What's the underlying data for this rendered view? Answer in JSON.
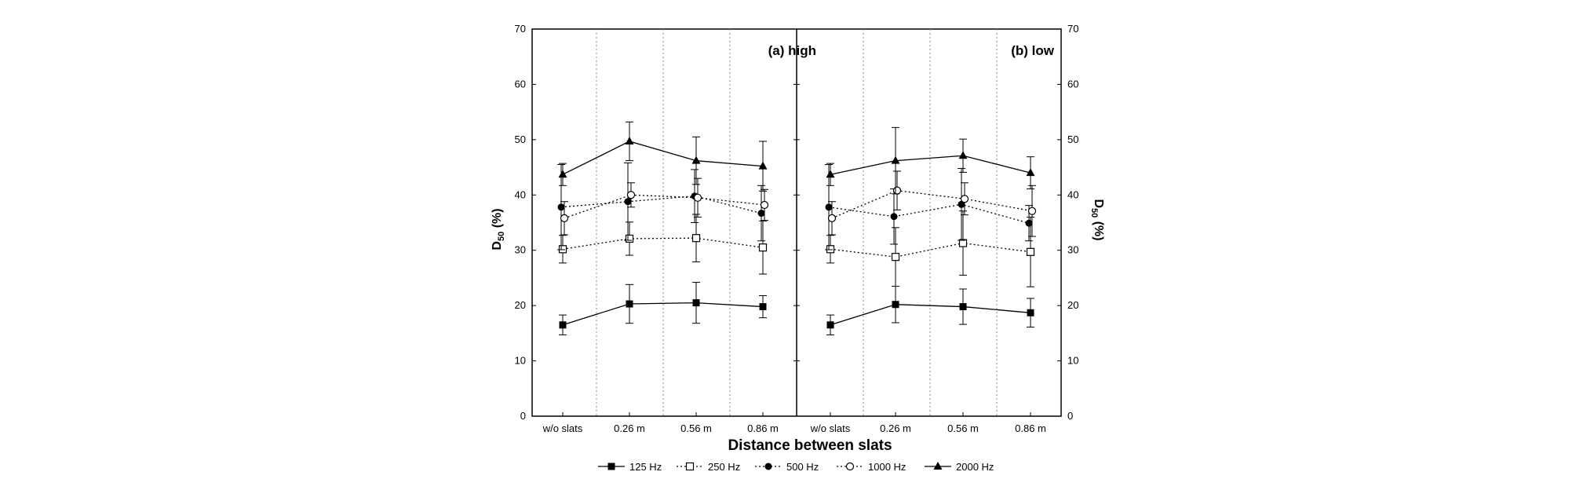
{
  "chart_data": {
    "type": "line",
    "xlabel": "Distance between slats",
    "ylabel": "D50 (%)",
    "ylabel_main": "D",
    "ylabel_sub": "50",
    "ylabel_unit": " (%)",
    "ylim": [
      0,
      70
    ],
    "yticks": [
      0,
      10,
      20,
      30,
      40,
      50,
      60,
      70
    ],
    "categories": [
      "w/o slats",
      "0.26 m",
      "0.56 m",
      "0.86 m"
    ],
    "grid": "vertical dotted separators between categories",
    "legend_position": "bottom",
    "panels": [
      {
        "title": "(a) high",
        "series": [
          {
            "name": "125 Hz",
            "values": [
              16.5,
              20.3,
              20.5,
              19.8
            ],
            "err": [
              1.8,
              3.5,
              3.7,
              2.0
            ]
          },
          {
            "name": "250 Hz",
            "values": [
              30.2,
              32.1,
              32.2,
              30.5
            ],
            "err": [
              2.5,
              3.0,
              4.3,
              4.8
            ]
          },
          {
            "name": "500 Hz",
            "values": [
              37.8,
              38.8,
              39.8,
              36.7
            ],
            "err": [
              7.7,
              7.0,
              4.8,
              5.0
            ]
          },
          {
            "name": "1000 Hz",
            "values": [
              35.8,
              40.0,
              39.5,
              38.2
            ],
            "err": [
              3.0,
              2.2,
              3.5,
              2.8
            ]
          },
          {
            "name": "2000 Hz",
            "values": [
              43.7,
              49.7,
              46.2,
              45.2
            ],
            "err": [
              2.0,
              3.5,
              4.3,
              4.5
            ]
          }
        ]
      },
      {
        "title": "(b) low",
        "series": [
          {
            "name": "125 Hz",
            "values": [
              16.5,
              20.2,
              19.8,
              18.7
            ],
            "err": [
              1.8,
              3.3,
              3.2,
              2.6
            ]
          },
          {
            "name": "250 Hz",
            "values": [
              30.2,
              28.8,
              31.3,
              29.7
            ],
            "err": [
              2.5,
              5.3,
              5.8,
              6.3
            ]
          },
          {
            "name": "500 Hz",
            "values": [
              37.8,
              36.1,
              38.3,
              34.9
            ],
            "err": [
              7.7,
              5.0,
              6.5,
              3.2
            ]
          },
          {
            "name": "1000 Hz",
            "values": [
              35.8,
              40.8,
              39.3,
              37.1
            ],
            "err": [
              3.0,
              3.5,
              2.9,
              4.6
            ]
          },
          {
            "name": "2000 Hz",
            "values": [
              43.7,
              46.2,
              47.1,
              44.0
            ],
            "err": [
              2.0,
              6.0,
              3.0,
              2.9
            ]
          }
        ]
      }
    ],
    "legend": [
      {
        "label": "125 Hz",
        "line": "solid",
        "marker": "square-filled"
      },
      {
        "label": "250 Hz",
        "line": "dotted",
        "marker": "square-open"
      },
      {
        "label": "500 Hz",
        "line": "dotted",
        "marker": "circle-filled"
      },
      {
        "label": "1000 Hz",
        "line": "dotted",
        "marker": "circle-open"
      },
      {
        "label": "2000 Hz",
        "line": "solid",
        "marker": "triangle-filled"
      }
    ]
  }
}
